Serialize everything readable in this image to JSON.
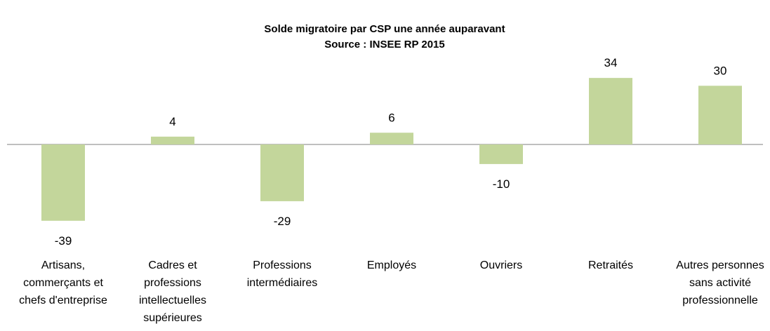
{
  "chart_data": {
    "type": "bar",
    "title": "Solde migratoire par CSP une année auparavant",
    "subtitle": "Source : INSEE RP 2015",
    "categories": [
      "Artisans, commerçants et chefs d'entreprise",
      "Cadres et professions intellectuelles supérieures",
      "Professions intermédiaires",
      "Employés",
      "Ouvriers",
      "Retraités",
      "Autres personnes sans activité professionnelle"
    ],
    "values": [
      -39,
      4,
      -29,
      6,
      -10,
      34,
      30
    ],
    "color": "#c3d69b"
  }
}
